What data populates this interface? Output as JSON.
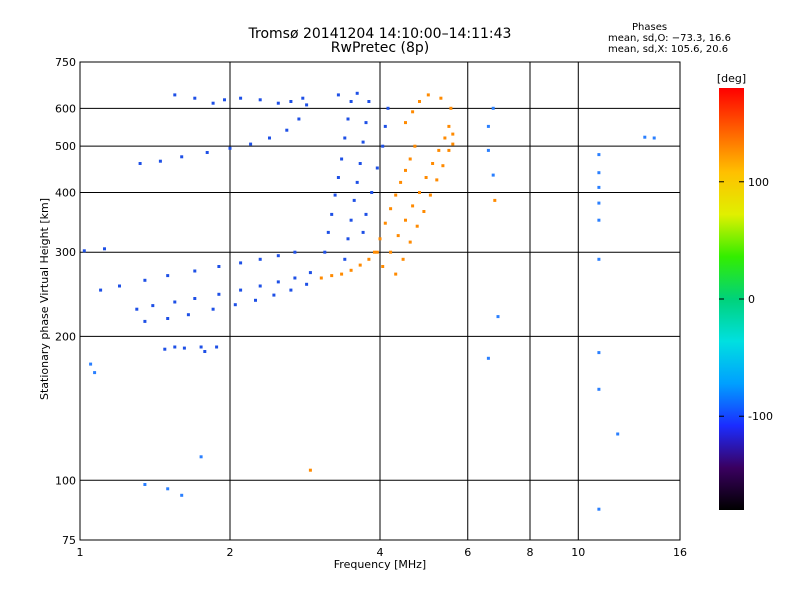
{
  "chart_data": {
    "type": "scatter",
    "title": "Tromsø 20141204 14:10:00–14:11:43",
    "subtitle": "RwPretec (8p)",
    "xlabel": "Frequency [MHz]",
    "ylabel": "Stationary phase Virtual Height [km]",
    "x_scale": "log",
    "y_scale": "log",
    "xlim": [
      1,
      16
    ],
    "ylim": [
      75,
      750
    ],
    "x_ticks": [
      1,
      2,
      4,
      6,
      8,
      10,
      16
    ],
    "x_ticks_labels": [
      "1",
      "2",
      "4",
      "6",
      "8",
      "10",
      "16"
    ],
    "y_ticks": [
      75,
      100,
      200,
      300,
      400,
      500,
      600,
      750
    ],
    "y_ticks_labels": [
      "75",
      "100",
      "200",
      "300",
      "400",
      "500",
      "600",
      "750"
    ],
    "grid": true,
    "colorbar": {
      "label": "[deg]",
      "range": [
        -180,
        180
      ],
      "ticks": [
        100,
        0,
        -100
      ],
      "ticks_labels": [
        "100",
        "0",
        "-100"
      ]
    },
    "stats": {
      "heading": "Phases",
      "o_line": "mean, sd,O: −73.3, 16.6",
      "x_line": "mean, sd,X: 105.6, 20.6"
    },
    "series": [
      {
        "points": [
          [
            1.32,
            460
          ],
          [
            1.45,
            465
          ],
          [
            1.6,
            475
          ],
          [
            1.8,
            485
          ],
          [
            2.0,
            495
          ],
          [
            2.2,
            505
          ],
          [
            2.4,
            520
          ],
          [
            2.6,
            540
          ],
          [
            2.75,
            570
          ],
          [
            2.85,
            610
          ],
          [
            1.55,
            640
          ],
          [
            1.7,
            630
          ],
          [
            1.85,
            615
          ],
          [
            1.95,
            625
          ],
          [
            2.1,
            630
          ],
          [
            2.3,
            625
          ],
          [
            2.5,
            615
          ],
          [
            2.65,
            620
          ],
          [
            2.8,
            630
          ],
          [
            1.1,
            250
          ],
          [
            1.2,
            255
          ],
          [
            1.35,
            262
          ],
          [
            1.5,
            268
          ],
          [
            1.7,
            274
          ],
          [
            1.9,
            280
          ],
          [
            2.1,
            285
          ],
          [
            2.3,
            290
          ],
          [
            2.5,
            295
          ],
          [
            2.7,
            300
          ],
          [
            1.3,
            228
          ],
          [
            1.4,
            232
          ],
          [
            1.55,
            236
          ],
          [
            1.7,
            240
          ],
          [
            1.9,
            245
          ],
          [
            2.1,
            250
          ],
          [
            2.3,
            255
          ],
          [
            2.5,
            260
          ],
          [
            2.7,
            265
          ],
          [
            2.9,
            272
          ],
          [
            1.35,
            215
          ],
          [
            1.5,
            218
          ],
          [
            1.65,
            222
          ],
          [
            1.85,
            228
          ],
          [
            2.05,
            233
          ],
          [
            2.25,
            238
          ],
          [
            2.45,
            244
          ],
          [
            2.65,
            250
          ],
          [
            2.85,
            257
          ],
          [
            3.1,
            300
          ],
          [
            3.15,
            330
          ],
          [
            3.2,
            360
          ],
          [
            3.25,
            395
          ],
          [
            3.3,
            430
          ],
          [
            3.35,
            470
          ],
          [
            3.4,
            520
          ],
          [
            3.45,
            570
          ],
          [
            3.5,
            620
          ],
          [
            3.4,
            290
          ],
          [
            3.45,
            320
          ],
          [
            3.5,
            350
          ],
          [
            3.55,
            385
          ],
          [
            3.6,
            420
          ],
          [
            3.65,
            460
          ],
          [
            3.7,
            510
          ],
          [
            3.75,
            560
          ],
          [
            3.8,
            620
          ],
          [
            3.7,
            330
          ],
          [
            3.75,
            360
          ],
          [
            3.85,
            400
          ],
          [
            3.95,
            450
          ],
          [
            4.05,
            500
          ],
          [
            4.1,
            550
          ],
          [
            4.15,
            600
          ],
          [
            1.48,
            188
          ],
          [
            1.55,
            190
          ],
          [
            1.62,
            189
          ],
          [
            1.78,
            186
          ],
          [
            1.88,
            190
          ],
          [
            1.02,
            302
          ],
          [
            1.12,
            305
          ],
          [
            1.75,
            190
          ],
          [
            3.3,
            640
          ],
          [
            3.6,
            645
          ]
        ]
      },
      {
        "points": [
          [
            3.05,
            265
          ],
          [
            3.2,
            268
          ],
          [
            3.35,
            270
          ],
          [
            3.5,
            275
          ],
          [
            3.65,
            282
          ],
          [
            3.8,
            290
          ],
          [
            3.95,
            300
          ],
          [
            3.9,
            300
          ],
          [
            4.0,
            320
          ],
          [
            4.1,
            345
          ],
          [
            4.2,
            370
          ],
          [
            4.3,
            395
          ],
          [
            4.4,
            420
          ],
          [
            4.5,
            445
          ],
          [
            4.6,
            470
          ],
          [
            4.7,
            500
          ],
          [
            4.05,
            280
          ],
          [
            4.2,
            300
          ],
          [
            4.35,
            325
          ],
          [
            4.5,
            350
          ],
          [
            4.65,
            375
          ],
          [
            4.8,
            400
          ],
          [
            4.95,
            430
          ],
          [
            5.1,
            460
          ],
          [
            5.25,
            490
          ],
          [
            5.4,
            520
          ],
          [
            5.5,
            550
          ],
          [
            4.3,
            270
          ],
          [
            4.45,
            290
          ],
          [
            4.6,
            315
          ],
          [
            4.75,
            340
          ],
          [
            4.9,
            365
          ],
          [
            5.05,
            395
          ],
          [
            5.2,
            425
          ],
          [
            5.35,
            455
          ],
          [
            5.5,
            490
          ],
          [
            5.6,
            530
          ],
          [
            4.5,
            560
          ],
          [
            4.65,
            590
          ],
          [
            4.8,
            620
          ],
          [
            5.0,
            640
          ],
          [
            5.3,
            630
          ],
          [
            5.55,
            600
          ],
          [
            6.8,
            385
          ],
          [
            5.6,
            505
          ],
          [
            2.9,
            105
          ]
        ]
      },
      {
        "points": [
          [
            11.0,
            480
          ],
          [
            11.0,
            440
          ],
          [
            11.0,
            410
          ],
          [
            11.0,
            380
          ],
          [
            11.0,
            350
          ],
          [
            11.0,
            290
          ],
          [
            11.0,
            185
          ],
          [
            11.0,
            155
          ],
          [
            11.0,
            87
          ],
          [
            12.0,
            125
          ],
          [
            13.6,
            522
          ],
          [
            14.2,
            520
          ],
          [
            6.6,
            180
          ],
          [
            6.6,
            490
          ],
          [
            6.75,
            435
          ],
          [
            6.9,
            220
          ],
          [
            6.75,
            600
          ],
          [
            6.6,
            550
          ],
          [
            1.35,
            98
          ],
          [
            1.5,
            96
          ],
          [
            1.6,
            93
          ],
          [
            1.75,
            112
          ],
          [
            1.05,
            175
          ],
          [
            1.07,
            168
          ]
        ]
      }
    ]
  },
  "figure": {
    "colorbar_colors": [
      "#000000",
      "#3a0060",
      "#1b2cff",
      "#00a0ff",
      "#00e0e0",
      "#00d27a",
      "#33ee00",
      "#e0f000",
      "#ffc000",
      "#ff6000",
      "#ff0000"
    ]
  }
}
